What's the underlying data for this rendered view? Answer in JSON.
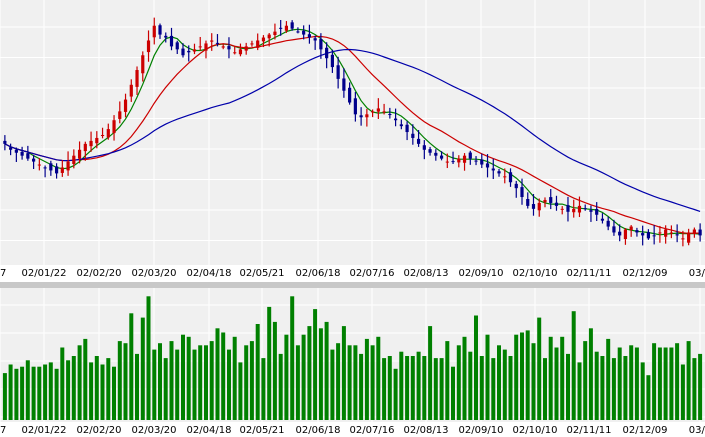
{
  "chart_data": [
    {
      "type": "candlestick",
      "title": "",
      "x_tick_labels": [
        "7",
        "02/01/22",
        "02/02/20",
        "02/03/20",
        "02/04/18",
        "02/05/21",
        "02/06/18",
        "02/07/16",
        "02/08/13",
        "02/09/10",
        "02/10/10",
        "02/11/11",
        "02/12/09",
        "03/0"
      ],
      "series": [
        {
          "type": "ohlc",
          "up_color": "#cc0000",
          "down_color": "#00008b",
          "close_values": [
            110,
            108,
            107,
            106,
            105,
            104,
            103,
            102,
            101,
            100,
            102,
            104,
            106,
            108,
            110,
            111,
            112,
            113,
            115,
            118,
            121,
            125,
            130,
            135,
            140,
            145,
            150,
            147,
            146,
            143,
            142,
            140,
            141,
            142,
            143,
            144,
            145,
            144,
            143,
            142,
            141,
            142,
            143,
            144,
            145,
            146,
            147,
            148,
            149,
            150,
            149,
            148,
            147,
            146,
            145,
            142,
            139,
            136,
            132,
            128,
            124,
            120,
            119,
            120,
            121,
            122,
            121,
            120,
            118,
            116,
            114,
            112,
            110,
            108,
            107,
            106,
            105,
            104,
            104,
            105,
            106,
            105,
            104,
            103,
            102,
            101,
            100,
            99,
            97,
            95,
            92,
            89,
            88,
            90,
            91,
            90,
            89,
            88,
            87,
            88,
            89,
            88,
            87,
            86,
            84,
            82,
            80,
            79,
            81,
            82,
            80,
            79,
            78,
            79,
            80,
            81,
            80,
            79,
            78,
            80,
            81,
            79
          ]
        },
        {
          "type": "line",
          "color": "#008000",
          "smoothing": 5
        },
        {
          "type": "line",
          "color": "#cc0000",
          "smoothing": 14
        },
        {
          "type": "line",
          "color": "#0000aa",
          "smoothing": 40
        }
      ]
    },
    {
      "type": "bar",
      "title": "",
      "x_tick_labels": [
        "7",
        "02/01/22",
        "02/02/20",
        "02/03/20",
        "02/04/18",
        "02/05/21",
        "02/06/18",
        "02/07/16",
        "02/08/13",
        "02/09/10",
        "02/10/10",
        "02/11/11",
        "02/12/09",
        "03/0"
      ],
      "series": [
        {
          "color": "#008000",
          "values": [
            22,
            26,
            24,
            25,
            28,
            25,
            25,
            26,
            27,
            24,
            34,
            28,
            30,
            35,
            38,
            27,
            30,
            26,
            29,
            25,
            37,
            36,
            50,
            31,
            48,
            58,
            33,
            36,
            29,
            37,
            33,
            40,
            39,
            33,
            35,
            35,
            37,
            43,
            41,
            33,
            39,
            27,
            35,
            37,
            45,
            29,
            53,
            46,
            31,
            40,
            58,
            35,
            40,
            44,
            52,
            43,
            46,
            33,
            36,
            44,
            35,
            35,
            31,
            38,
            35,
            39,
            29,
            30,
            24,
            32,
            30,
            30,
            32,
            30,
            44,
            29,
            29,
            37,
            25,
            35,
            39,
            32,
            49,
            30,
            40,
            29,
            35,
            33,
            30,
            40,
            41,
            42,
            36,
            48,
            29,
            39,
            34,
            39,
            31,
            51,
            27,
            37,
            43,
            32,
            30,
            38,
            29,
            34,
            30,
            35,
            34,
            27,
            21,
            36,
            34,
            34,
            34,
            36,
            26,
            37,
            29,
            31
          ]
        }
      ]
    }
  ]
}
